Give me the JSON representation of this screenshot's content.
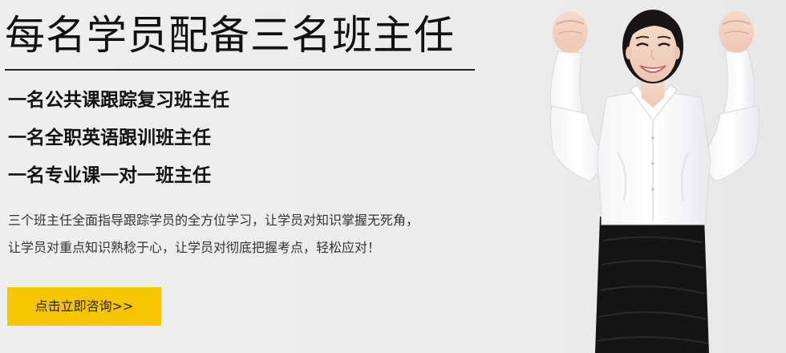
{
  "banner": {
    "headline": "每名学员配备三名班主任",
    "bullets": [
      "一名公共课跟踪复习班主任",
      "一名全职英语跟训班主任",
      "一名专业课一对一班主任"
    ],
    "description": [
      "三个班主任全面指导跟踪学员的全方位学习，让学员对知识掌握无死角，",
      "让学员对重点知识熟稔于心，让学员对彻底把握考点，轻松应对！"
    ],
    "cta_label": "点击立即咨询>>"
  },
  "colors": {
    "background": "#ededed",
    "cta": "#f7c500",
    "text": "#111111"
  },
  "icons": {
    "person": "woman-cheering-illustration"
  }
}
